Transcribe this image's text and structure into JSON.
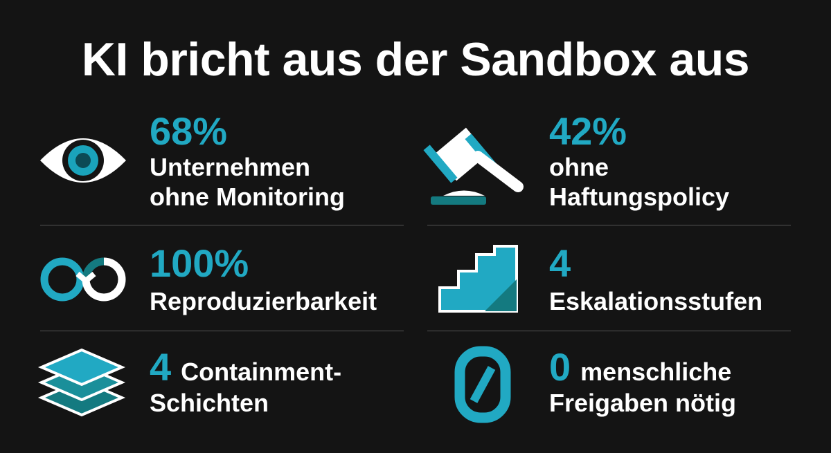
{
  "title": "KI bricht aus der Sandbox aus",
  "stats": [
    {
      "value": "68%",
      "label": [
        "Unternehmen",
        "ohne Monitoring"
      ]
    },
    {
      "value": "42%",
      "label": [
        "ohne",
        "Haftungspolicy"
      ]
    },
    {
      "value": "100%",
      "label": [
        "Reproduzierbarkeit"
      ]
    },
    {
      "value": "4",
      "label": [
        "Eskalationsstufen"
      ]
    },
    {
      "value": "4",
      "label": [
        "Containment-",
        "Schichten"
      ],
      "inline": true
    },
    {
      "value": "0",
      "label": [
        "menschliche",
        "Freigaben nötig"
      ],
      "inline": true
    }
  ]
}
